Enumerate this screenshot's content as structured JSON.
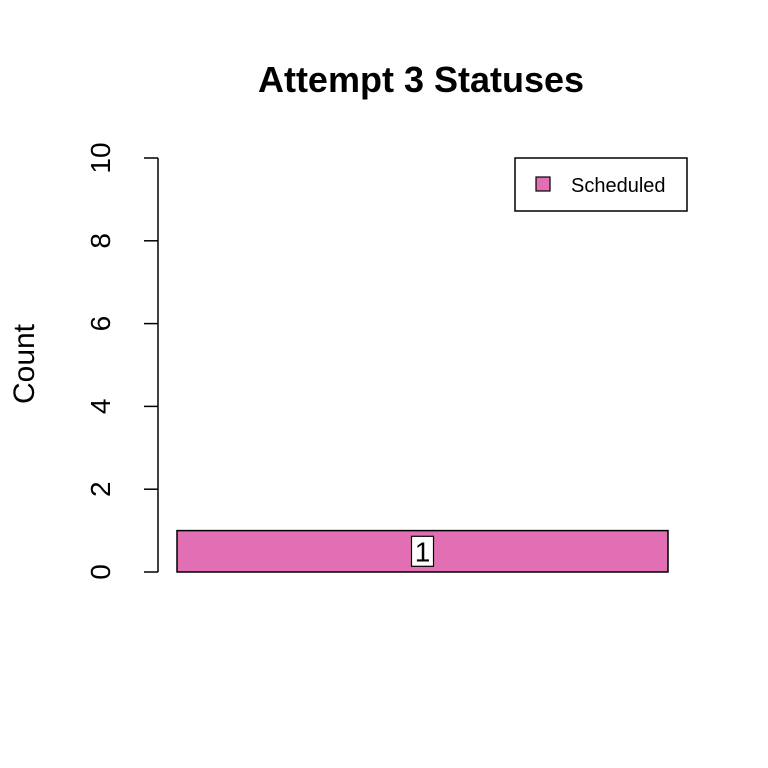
{
  "chart_data": {
    "type": "bar",
    "title": "Attempt 3 Statuses",
    "xlabel": "",
    "ylabel": "Count",
    "ylim": [
      0,
      10
    ],
    "yticks": [
      "0",
      "2",
      "4",
      "6",
      "8",
      "10"
    ],
    "categories": [
      "Scheduled"
    ],
    "values": [
      1
    ],
    "colors": [
      "#E26FB3"
    ],
    "data_labels": [
      "1"
    ],
    "legend": {
      "position": "top-right",
      "entries": [
        {
          "label": "Scheduled",
          "color": "#E26FB3"
        }
      ]
    },
    "grid": false
  }
}
